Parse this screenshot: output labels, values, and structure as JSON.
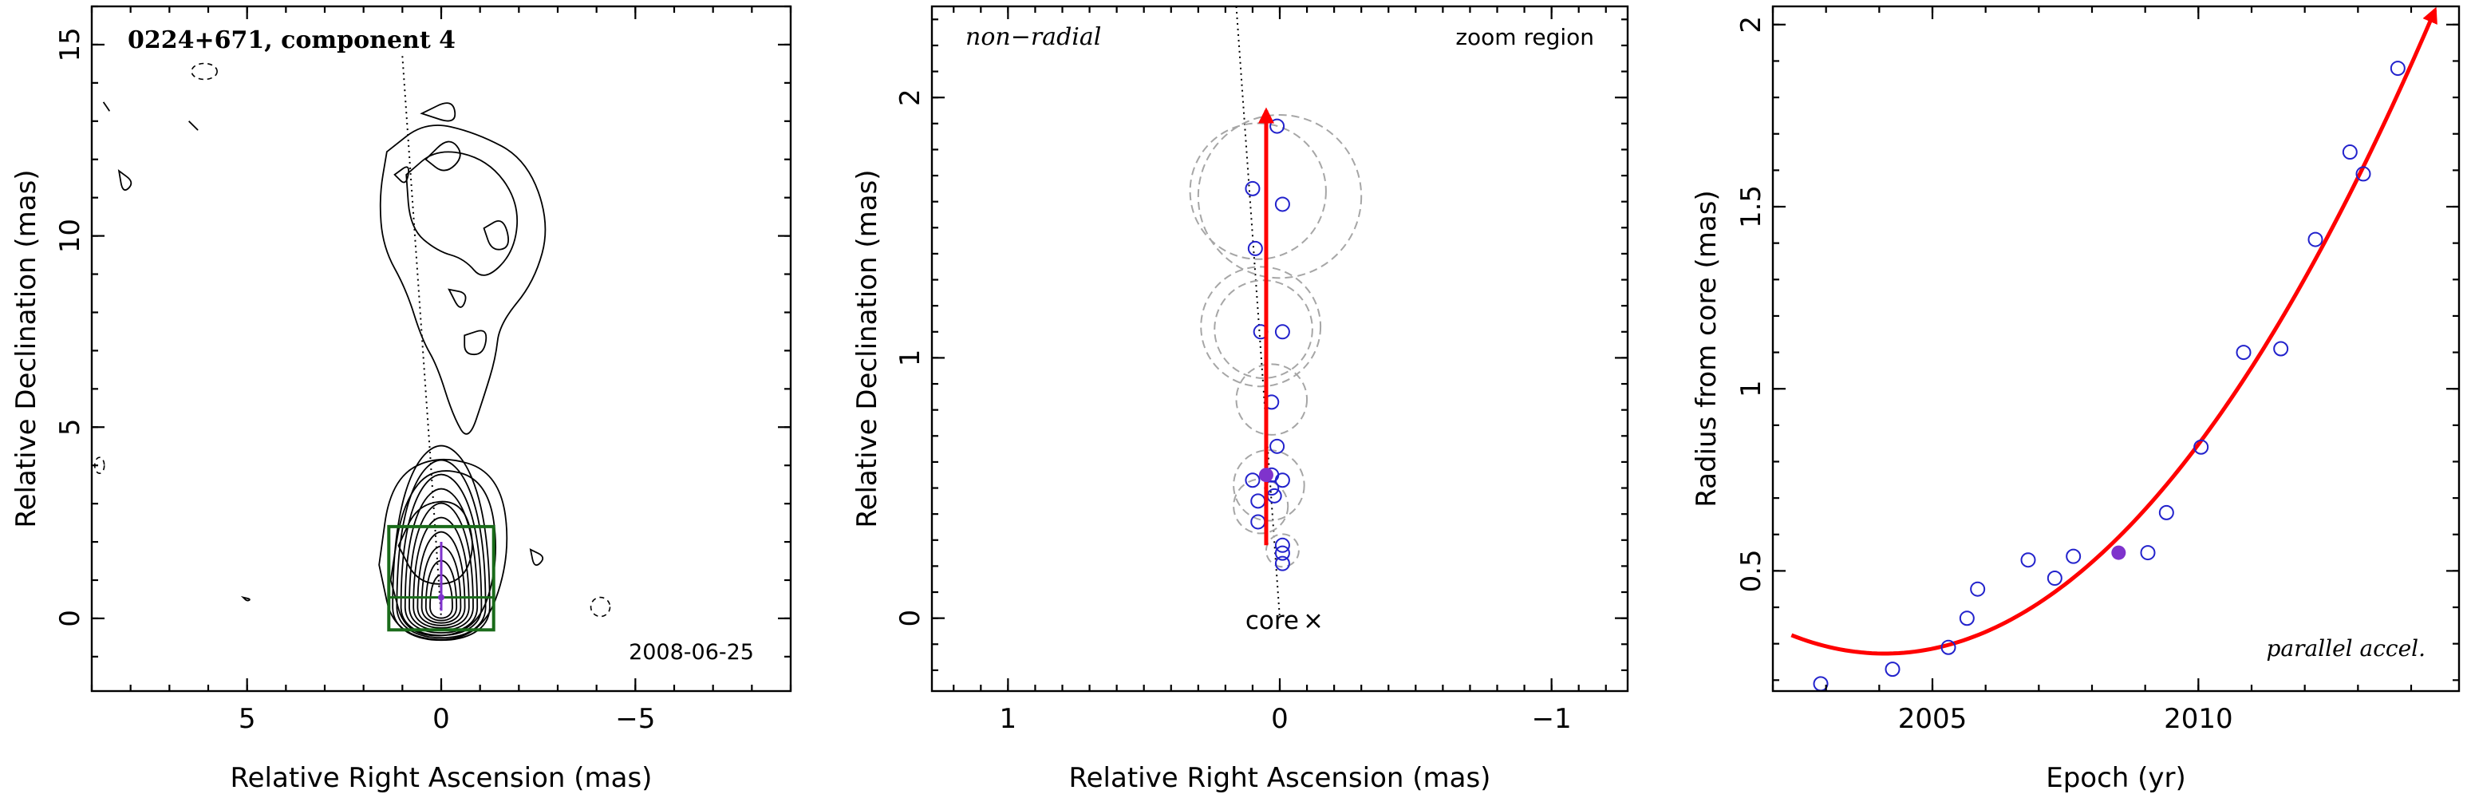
{
  "chart_data": [
    {
      "type": "contour",
      "title": "0224+671, component 4",
      "date_label": "2008-06-25",
      "xlabel": "Relative Right Ascension (mas)",
      "ylabel": "Relative Declination (mas)",
      "xlim": [
        9,
        -9
      ],
      "ylim": [
        -1.9,
        16
      ],
      "xticks": [
        5,
        0,
        -5
      ],
      "xtick_labels": [
        "5",
        "0",
        "−5"
      ],
      "yticks": [
        0,
        5,
        10,
        15
      ],
      "ytick_labels": [
        "0",
        "5",
        "10",
        "15"
      ],
      "ridge_line": [
        [
          1.0,
          14.7
        ],
        [
          0.3,
          4.5
        ],
        [
          0.0,
          0.0
        ]
      ],
      "zoom_box": {
        "x": [
          1.35,
          -1.35
        ],
        "y": [
          -0.3,
          2.4
        ]
      },
      "colors": {
        "contour": "#000000",
        "zoom_box": "#1a6b1a",
        "core_marker": "#7f33cc"
      }
    },
    {
      "type": "scatter",
      "corner_left": "non−radial",
      "corner_right": "zoom region",
      "core_label": "core",
      "xlabel": "Relative Right Ascension (mas)",
      "ylabel": "Relative Declination (mas)",
      "xlim": [
        1.28,
        -1.28
      ],
      "ylim": [
        -0.28,
        2.35
      ],
      "xticks": [
        1,
        0,
        -1
      ],
      "xtick_labels": [
        "1",
        "0",
        "−1"
      ],
      "yticks": [
        0,
        1,
        2
      ],
      "ytick_labels": [
        "0",
        "1",
        "2"
      ],
      "points": [
        {
          "x": -0.01,
          "y": 0.21
        },
        {
          "x": -0.01,
          "y": 0.25
        },
        {
          "x": -0.01,
          "y": 0.28
        },
        {
          "x": 0.08,
          "y": 0.37
        },
        {
          "x": 0.08,
          "y": 0.45
        },
        {
          "x": 0.1,
          "y": 0.53
        },
        {
          "x": 0.03,
          "y": 0.5
        },
        {
          "x": 0.02,
          "y": 0.47
        },
        {
          "x": -0.01,
          "y": 0.53
        },
        {
          "x": 0.03,
          "y": 0.55
        },
        {
          "x": 0.01,
          "y": 0.66
        },
        {
          "x": 0.03,
          "y": 0.83
        },
        {
          "x": 0.07,
          "y": 1.1
        },
        {
          "x": -0.01,
          "y": 1.1
        },
        {
          "x": 0.09,
          "y": 1.42
        },
        {
          "x": 0.1,
          "y": 1.65
        },
        {
          "x": -0.01,
          "y": 1.59
        },
        {
          "x": 0.01,
          "y": 1.89
        }
      ],
      "highlight_point": {
        "x": 0.05,
        "y": 0.55
      },
      "uncertainty_circles": [
        {
          "x": -0.01,
          "y": 0.26,
          "r": 0.06
        },
        {
          "x": 0.07,
          "y": 0.43,
          "r": 0.1
        },
        {
          "x": 0.04,
          "y": 0.51,
          "r": 0.13
        },
        {
          "x": 0.03,
          "y": 0.84,
          "r": 0.13
        },
        {
          "x": 0.06,
          "y": 1.11,
          "r": 0.18
        },
        {
          "x": 0.07,
          "y": 1.12,
          "r": 0.22
        },
        {
          "x": 0.08,
          "y": 1.64,
          "r": 0.25
        },
        {
          "x": 0.0,
          "y": 1.62,
          "r": 0.3
        }
      ],
      "vector": {
        "from": [
          0.05,
          0.28
        ],
        "to": [
          0.05,
          1.95
        ]
      },
      "ridge_line": [
        [
          0.16,
          2.35
        ],
        [
          0.0,
          0.0
        ]
      ],
      "colors": {
        "points": "#2222cc",
        "highlight": "#7f33cc",
        "vector": "#ff0000",
        "circles": "#a6a6a6"
      }
    },
    {
      "type": "scatter",
      "corner_label": "parallel accel.",
      "xlabel": "Epoch (yr)",
      "ylabel": "Radius from core (mas)",
      "xlim": [
        2002.0,
        2014.9
      ],
      "ylim": [
        0.17,
        2.05
      ],
      "xticks": [
        2005,
        2010
      ],
      "xtick_labels": [
        "2005",
        "2010"
      ],
      "yticks": [
        0.5,
        1,
        1.5,
        2
      ],
      "ytick_labels": [
        "0.5",
        "1",
        "1.5",
        "2"
      ],
      "points": [
        {
          "x": 2002.9,
          "y": 0.19
        },
        {
          "x": 2004.25,
          "y": 0.23
        },
        {
          "x": 2005.3,
          "y": 0.29
        },
        {
          "x": 2005.65,
          "y": 0.37
        },
        {
          "x": 2005.85,
          "y": 0.45
        },
        {
          "x": 2006.8,
          "y": 0.53
        },
        {
          "x": 2007.3,
          "y": 0.48
        },
        {
          "x": 2007.65,
          "y": 0.54
        },
        {
          "x": 2009.05,
          "y": 0.55
        },
        {
          "x": 2009.4,
          "y": 0.66
        },
        {
          "x": 2010.05,
          "y": 0.84
        },
        {
          "x": 2010.85,
          "y": 1.1
        },
        {
          "x": 2011.55,
          "y": 1.11
        },
        {
          "x": 2012.2,
          "y": 1.41
        },
        {
          "x": 2012.85,
          "y": 1.65
        },
        {
          "x": 2013.1,
          "y": 1.59
        },
        {
          "x": 2013.75,
          "y": 1.88
        }
      ],
      "highlight_point": {
        "x": 2008.5,
        "y": 0.55
      },
      "fit_curve": {
        "x_start": 2002.35,
        "x_end": 2014.45,
        "vertex_x": 2004.1,
        "vertex_y": 0.273,
        "curvature": 0.0165
      },
      "colors": {
        "points": "#2222cc",
        "highlight": "#7f33cc",
        "fit": "#ff0000"
      }
    }
  ]
}
